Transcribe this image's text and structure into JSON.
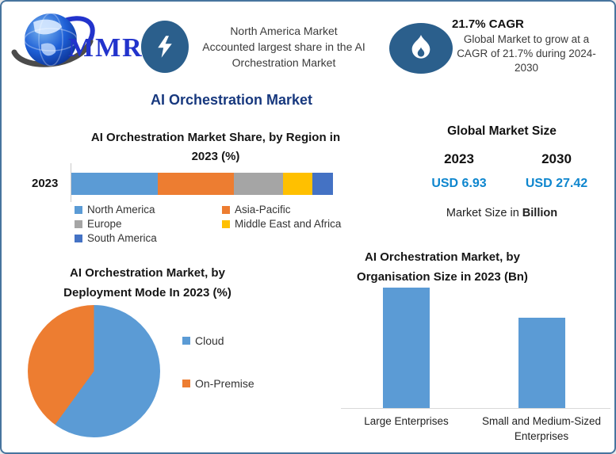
{
  "canvas": {
    "background": "#ffffff",
    "border_color": "#47749e"
  },
  "logo": {
    "text": "MMR"
  },
  "banner": {
    "na": {
      "lines": [
        "North America Market",
        "Accounted largest share in the AI",
        "Orchestration Market"
      ]
    },
    "cagr": {
      "title": "21.7% CAGR",
      "lines": [
        "Global Market to grow at a",
        "CAGR of 21.7% during 2024-",
        "2030"
      ]
    }
  },
  "main_title": "AI Orchestration Market",
  "region_section": {
    "title_lines": [
      "AI Orchestration Market Share, by Region in",
      "2023 (%)"
    ],
    "row_label": "2023"
  },
  "market_size_section": {
    "title": "Global Market Size",
    "col1_year": "2023",
    "col2_year": "2030",
    "col1_value": "USD 6.93",
    "col2_value": "USD 27.42",
    "caption_prefix": "Market Size in ",
    "caption_bold": "Billion",
    "value_color": "#0E86CE"
  },
  "pie_section": {
    "title_lines": [
      "AI Orchestration Market, by",
      "Deployment Mode In 2023 (%)"
    ]
  },
  "org_section": {
    "title_lines": [
      "AI Orchestration Market, by",
      "Organisation Size in 2023 (Bn)"
    ]
  },
  "chart_data": [
    {
      "type": "bar",
      "subtype": "horizontal-stacked",
      "title": "AI Orchestration Market Share, by Region in 2023 (%)",
      "row_label": "2023",
      "categories": [
        "North America",
        "Asia-Pacific",
        "Europe",
        "Middle East and Africa",
        "South America"
      ],
      "values": [
        33,
        29,
        19,
        11,
        8
      ],
      "units": "%",
      "colors": [
        "#5B9BD5",
        "#ED7D31",
        "#A5A5A5",
        "#FFC000",
        "#4472C4"
      ],
      "legend_position": "bottom",
      "grid": false
    },
    {
      "type": "pie",
      "title": "AI Orchestration Market, by Deployment Mode In 2023 (%)",
      "categories": [
        "Cloud",
        "On-Premise"
      ],
      "values": [
        60,
        40
      ],
      "units": "%",
      "colors": [
        "#5B9BD5",
        "#ED7D31"
      ],
      "legend_position": "right",
      "start_angle_deg": 0
    },
    {
      "type": "bar",
      "title": "AI Orchestration Market, by Organisation Size in 2023 (Bn)",
      "categories": [
        "Large Enterprises",
        "Small and Medium-Sized Enterprises"
      ],
      "values": [
        4.0,
        3.0
      ],
      "units": "USD Bn (estimated from bar heights)",
      "colors": [
        "#5B9BD5",
        "#5B9BD5"
      ],
      "ylim": [
        0,
        4.2
      ],
      "grid": false
    }
  ],
  "stats": {
    "market_size_2023_usd_bn": 6.93,
    "market_size_2030_usd_bn": 27.42,
    "cagr_pct": 21.7,
    "cagr_period": "2024-2030"
  }
}
